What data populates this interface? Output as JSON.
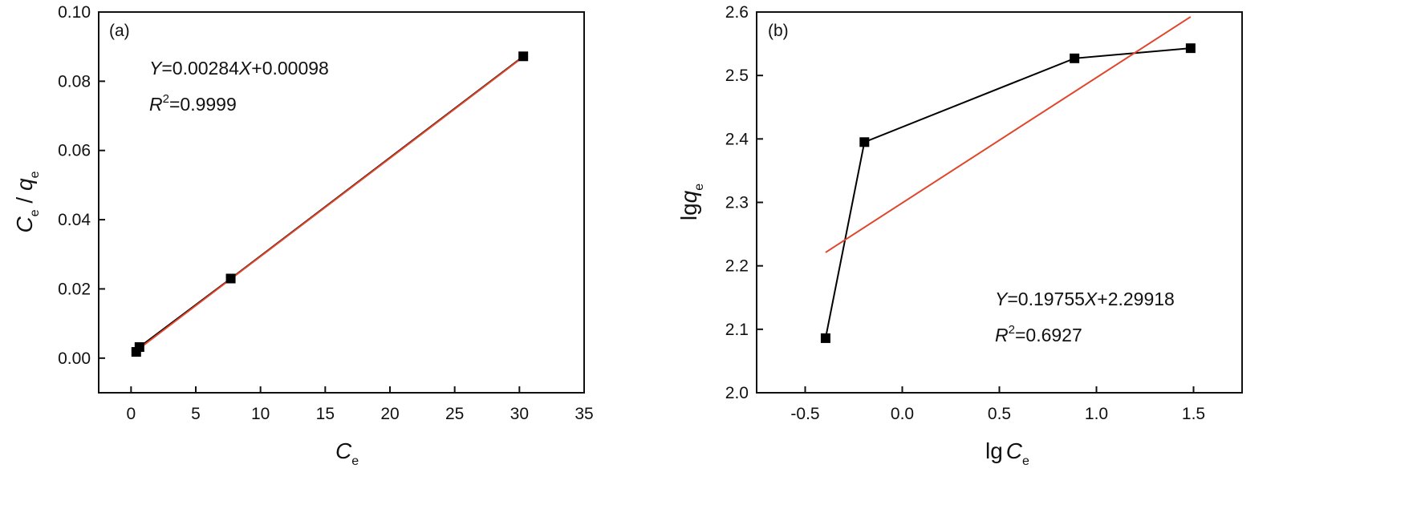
{
  "chart_data": [
    {
      "type": "scatter",
      "panel_label": "(a)",
      "xlabel_main": "C",
      "xlabel_sub": "e",
      "ylabel_parts": [
        "C",
        "e",
        " / ",
        "q",
        "e"
      ],
      "xlim": [
        -2.5,
        35
      ],
      "ylim": [
        -0.01,
        0.1
      ],
      "xticks": [
        0,
        5,
        10,
        15,
        20,
        25,
        30,
        35
      ],
      "yticks": [
        0.0,
        0.02,
        0.04,
        0.06,
        0.08,
        0.1
      ],
      "ytick_labels": [
        "0.00",
        "0.02",
        "0.04",
        "0.06",
        "0.08",
        "0.10"
      ],
      "series": [
        {
          "points": [
            {
              "x": 0.4,
              "y": 0.0018
            },
            {
              "x": 0.65,
              "y": 0.0032
            },
            {
              "x": 7.7,
              "y": 0.023
            },
            {
              "x": 30.3,
              "y": 0.0872
            }
          ],
          "marker_color": "#000000",
          "connect": true,
          "line_color": "#000000"
        }
      ],
      "fit": {
        "slope": 0.00284,
        "intercept": 0.00098,
        "x_range": [
          0.4,
          30.3
        ],
        "color": "#e0462a",
        "equation": {
          "y": "Y",
          "eq_text": "=0.00284",
          "x": "X",
          "tail": "+0.00098"
        },
        "r2": {
          "r": "R",
          "sup": "2",
          "value": "=0.9999"
        }
      }
    },
    {
      "type": "scatter",
      "panel_label": "(b)",
      "xlabel_main": "lg",
      "xlabel_var": "C",
      "xlabel_sub": "e",
      "ylabel_main": "lg",
      "ylabel_var": "q",
      "ylabel_sub": "e",
      "xlim": [
        -0.75,
        1.75
      ],
      "ylim": [
        2.0,
        2.6
      ],
      "xticks": [
        -0.5,
        0.0,
        0.5,
        1.0,
        1.5
      ],
      "xtick_labels": [
        "-0.5",
        "0.0",
        "0.5",
        "1.0",
        "1.5"
      ],
      "yticks": [
        2.0,
        2.1,
        2.2,
        2.3,
        2.4,
        2.5,
        2.6
      ],
      "ytick_labels": [
        "2.0",
        "2.1",
        "2.2",
        "2.3",
        "2.4",
        "2.5",
        "2.6"
      ],
      "series": [
        {
          "points": [
            {
              "x": -0.395,
              "y": 2.086
            },
            {
              "x": -0.195,
              "y": 2.395
            },
            {
              "x": 0.887,
              "y": 2.527
            },
            {
              "x": 1.485,
              "y": 2.543
            }
          ],
          "marker_color": "#000000",
          "connect": true,
          "line_color": "#000000"
        }
      ],
      "fit": {
        "slope": 0.19755,
        "intercept": 2.29918,
        "x_range": [
          -0.395,
          1.485
        ],
        "color": "#e0462a",
        "equation": {
          "y": "Y",
          "eq_text": "=0.19755",
          "x": "X",
          "tail": "+2.29918"
        },
        "r2": {
          "r": "R",
          "sup": "2",
          "value": "=0.6927"
        }
      }
    }
  ]
}
